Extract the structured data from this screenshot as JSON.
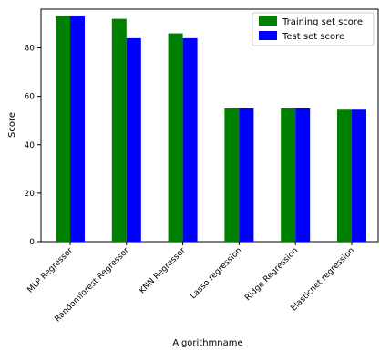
{
  "chart_data": {
    "type": "bar",
    "title": "",
    "xlabel": "Algorithmname",
    "ylabel": "Score",
    "ylim": [
      0,
      96
    ],
    "yticks": [
      0,
      20,
      40,
      60,
      80
    ],
    "grid": false,
    "legend_position": "top-right",
    "categories": [
      "MLP Regressor",
      "Randomforest Regressor",
      "KNN Regressor",
      "Lasso regression",
      "Ridge Regression",
      "Elasticnet regression"
    ],
    "series": [
      {
        "name": "Training set score",
        "color": "#007f00",
        "values": [
          93,
          92,
          86,
          55,
          55,
          54.5
        ]
      },
      {
        "name": "Test set score",
        "color": "#0000ff",
        "values": [
          93,
          84,
          84,
          55,
          55,
          54.5
        ]
      }
    ]
  }
}
